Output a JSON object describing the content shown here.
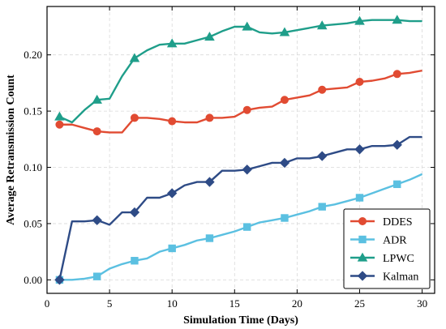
{
  "chart_data": {
    "type": "line",
    "title": "",
    "xlabel": "Simulation Time (Days)",
    "ylabel": "Average Retransmission Count",
    "xlim": [
      0,
      31
    ],
    "ylim": [
      -0.012,
      0.243
    ],
    "xticks": [
      0,
      5,
      10,
      15,
      20,
      25,
      30
    ],
    "xtick_labels": [
      "0",
      "5",
      "10",
      "15",
      "20",
      "25",
      "30"
    ],
    "yticks": [
      0.0,
      0.05,
      0.1,
      0.15,
      0.2
    ],
    "ytick_labels": [
      "0.00",
      "0.05",
      "0.10",
      "0.15",
      "0.20"
    ],
    "grid": true,
    "grid_style": "dashed",
    "legend_position": "bottom-right",
    "x": [
      1,
      2,
      3,
      4,
      5,
      6,
      7,
      8,
      9,
      10,
      11,
      12,
      13,
      14,
      15,
      16,
      17,
      18,
      19,
      20,
      21,
      22,
      23,
      24,
      25,
      26,
      27,
      28,
      29,
      30
    ],
    "marker_every_x": [
      1,
      4,
      7,
      10,
      13,
      16,
      19,
      22,
      25,
      28
    ],
    "series": [
      {
        "name": "DDES",
        "color": "#e14b32",
        "marker": "circle",
        "values": [
          0.138,
          0.138,
          0.135,
          0.132,
          0.131,
          0.131,
          0.144,
          0.144,
          0.143,
          0.141,
          0.14,
          0.14,
          0.144,
          0.144,
          0.145,
          0.151,
          0.153,
          0.154,
          0.16,
          0.162,
          0.164,
          0.169,
          0.17,
          0.171,
          0.176,
          0.177,
          0.179,
          0.183,
          0.184,
          0.186
        ]
      },
      {
        "name": "ADR",
        "color": "#5bc0e1",
        "marker": "square",
        "values": [
          0.0,
          0.0,
          0.001,
          0.003,
          0.01,
          0.014,
          0.017,
          0.019,
          0.025,
          0.028,
          0.031,
          0.035,
          0.037,
          0.04,
          0.043,
          0.047,
          0.051,
          0.053,
          0.055,
          0.058,
          0.061,
          0.065,
          0.067,
          0.07,
          0.073,
          0.077,
          0.081,
          0.085,
          0.089,
          0.094
        ]
      },
      {
        "name": "LPWC",
        "color": "#1f9e8a",
        "marker": "triangle",
        "values": [
          0.145,
          0.14,
          0.151,
          0.16,
          0.161,
          0.181,
          0.197,
          0.204,
          0.209,
          0.21,
          0.21,
          0.213,
          0.216,
          0.221,
          0.225,
          0.225,
          0.22,
          0.219,
          0.22,
          0.222,
          0.224,
          0.226,
          0.227,
          0.228,
          0.23,
          0.231,
          0.231,
          0.231,
          0.23,
          0.23
        ]
      },
      {
        "name": "Kalman",
        "color": "#2e4b86",
        "marker": "diamond",
        "values": [
          0.0,
          0.052,
          0.052,
          0.053,
          0.049,
          0.06,
          0.06,
          0.073,
          0.073,
          0.077,
          0.084,
          0.087,
          0.087,
          0.097,
          0.097,
          0.098,
          0.101,
          0.104,
          0.104,
          0.108,
          0.108,
          0.11,
          0.113,
          0.116,
          0.116,
          0.119,
          0.119,
          0.12,
          0.127,
          0.127
        ]
      }
    ]
  }
}
